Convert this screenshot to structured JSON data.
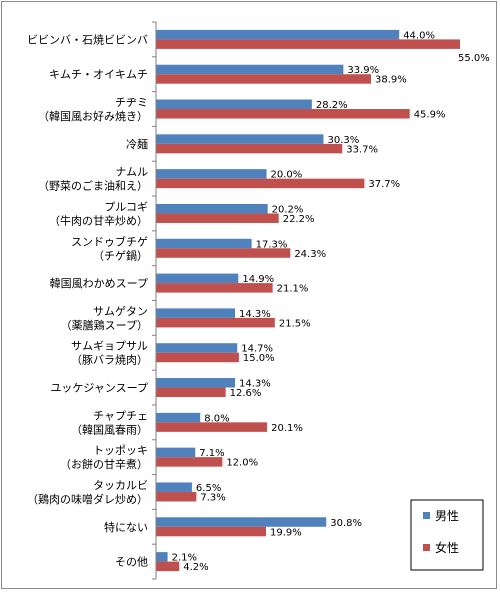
{
  "chart_data": {
    "type": "bar",
    "orientation": "horizontal",
    "categories": [
      [
        "ビビンバ・石焼ビビンバ"
      ],
      [
        "キムチ・オイキムチ"
      ],
      [
        "チヂミ",
        "（韓国風お好み焼き）"
      ],
      [
        "冷麺"
      ],
      [
        "ナムル",
        "（野菜のごま油和え）"
      ],
      [
        "プルコギ",
        "（牛肉の甘辛炒め）"
      ],
      [
        "スンドゥブチゲ",
        "（チゲ鍋）"
      ],
      [
        "韓国風わかめスープ"
      ],
      [
        "サムゲタン",
        "（薬膳鶏スープ）"
      ],
      [
        "サムギョプサル",
        "（豚バラ焼肉）"
      ],
      [
        "ユッケジャンスープ"
      ],
      [
        "チャプチェ",
        "（韓国風春雨）"
      ],
      [
        "トッポッキ",
        "（お餅の甘辛煮）"
      ],
      [
        "タッカルビ",
        "（鶏肉の味噌ダレ炒め）"
      ],
      [
        "特にない"
      ],
      [
        "その他"
      ]
    ],
    "series": [
      {
        "name": "男性",
        "color": "#4f81bd",
        "values": [
          44.0,
          33.9,
          28.2,
          30.3,
          20.0,
          20.2,
          17.3,
          14.9,
          14.3,
          14.7,
          14.3,
          8.0,
          7.1,
          6.5,
          30.8,
          2.1
        ],
        "labels": [
          "44.0%",
          "33.9%",
          "28.2%",
          "30.3%",
          "20.0%",
          "20.2%",
          "17.3%",
          "14.9%",
          "14.3%",
          "14.7%",
          "14.3%",
          "8.0%",
          "7.1%",
          "6.5%",
          "30.8%",
          "2.1%"
        ]
      },
      {
        "name": "女性",
        "color": "#c0504d",
        "values": [
          55.0,
          38.9,
          45.9,
          33.7,
          37.7,
          22.2,
          24.3,
          21.1,
          21.5,
          15.0,
          12.6,
          20.1,
          12.0,
          7.3,
          19.9,
          4.2
        ],
        "labels": [
          "55.0%",
          "38.9%",
          "45.9%",
          "33.7%",
          "37.7%",
          "22.2%",
          "24.3%",
          "21.1%",
          "21.5%",
          "15.0%",
          "12.6%",
          "20.1%",
          "12.0%",
          "7.3%",
          "19.9%",
          "4.2%"
        ]
      }
    ],
    "xlim": [
      0,
      55
    ],
    "grid": false,
    "legend_position": "bottom-right"
  }
}
